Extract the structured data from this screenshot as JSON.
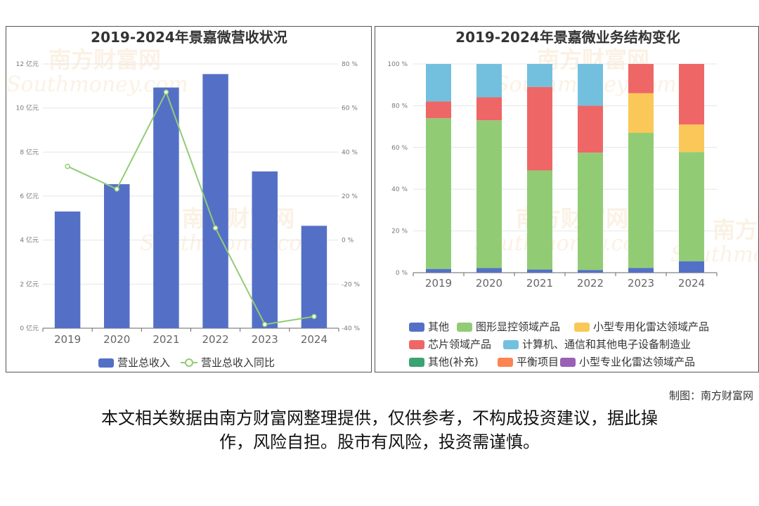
{
  "colors": {
    "revenue_bar": "#5470c6",
    "yoy_line": "#91cc75",
    "other": "#5470c6",
    "graphic_display": "#91cc75",
    "small_radar": "#fac858",
    "chip": "#ee6666",
    "computer_comm": "#73c0de",
    "other_supplement": "#3ba272",
    "balance_item": "#fc8452",
    "small_radar_special": "#9a60b4"
  },
  "watermark": {
    "cn": "南方财富网",
    "en": "Southmoney.com"
  },
  "credit": "制图：南方财富网",
  "disclaimer": [
    "本文相关数据由南方财富网整理提供，仅供参考，不构成投资建议，据此操",
    "作，风险自担。股市有风险，投资需谨慎。"
  ],
  "chart_data": [
    {
      "type": "bar",
      "title": "2019-2024年景嘉微营收状况",
      "categories": [
        "2019",
        "2020",
        "2021",
        "2022",
        "2023",
        "2024"
      ],
      "y_left": {
        "ticks": [
          "0 亿元",
          "2 亿元",
          "4 亿元",
          "6 亿元",
          "8 亿元",
          "10 亿元",
          "12 亿元"
        ],
        "ylim": [
          0,
          12
        ]
      },
      "y_right": {
        "ticks": [
          "-40 %",
          "-20 %",
          "0 %",
          "20 %",
          "40 %",
          "60 %",
          "80 %"
        ],
        "ylim": [
          -40,
          80
        ]
      },
      "series": [
        {
          "name": "营业总收入",
          "type": "bar",
          "axis": "left",
          "values": [
            5.3,
            6.54,
            10.93,
            11.54,
            7.12,
            4.65
          ]
        },
        {
          "name": "营业总收入同比",
          "type": "line",
          "axis": "right",
          "values": [
            33.5,
            23.2,
            67.2,
            5.5,
            -38.3,
            -34.7
          ]
        }
      ],
      "legend_position": "bottom-center",
      "grid": true
    },
    {
      "type": "bar",
      "stacked": true,
      "title": "2019-2024年景嘉微业务结构变化",
      "categories": [
        "2019",
        "2020",
        "2021",
        "2022",
        "2023",
        "2024"
      ],
      "y": {
        "ticks": [
          "0 %",
          "20 %",
          "40 %",
          "60 %",
          "80 %",
          "100 %"
        ],
        "ylim": [
          0,
          100
        ]
      },
      "series": [
        {
          "name": "其他",
          "values": [
            1.8,
            2.2,
            1.5,
            1.3,
            2.3,
            5.5
          ]
        },
        {
          "name": "图形显控领域产品",
          "values": [
            72.2,
            70.8,
            47.5,
            56.2,
            64.7,
            52.3
          ]
        },
        {
          "name": "小型专用化雷达领域产品",
          "values": [
            0,
            0,
            0,
            0,
            19.0,
            13.2
          ]
        },
        {
          "name": "芯片领域产品",
          "values": [
            8.0,
            11.0,
            40.0,
            22.5,
            14.0,
            29.0
          ]
        },
        {
          "name": "计算机、通信和其他电子设备制造业",
          "values": [
            18.0,
            16.0,
            11.0,
            20.0,
            0,
            0
          ]
        },
        {
          "name": "其他(补充)",
          "values": [
            0,
            0,
            0,
            0,
            0,
            0
          ]
        },
        {
          "name": "平衡项目",
          "values": [
            0,
            0,
            0,
            0,
            0,
            0
          ]
        },
        {
          "name": "小型专业化雷达领域产品",
          "values": [
            0,
            0,
            0,
            0,
            0,
            0
          ]
        }
      ],
      "legend_position": "bottom-center",
      "grid": true
    }
  ]
}
